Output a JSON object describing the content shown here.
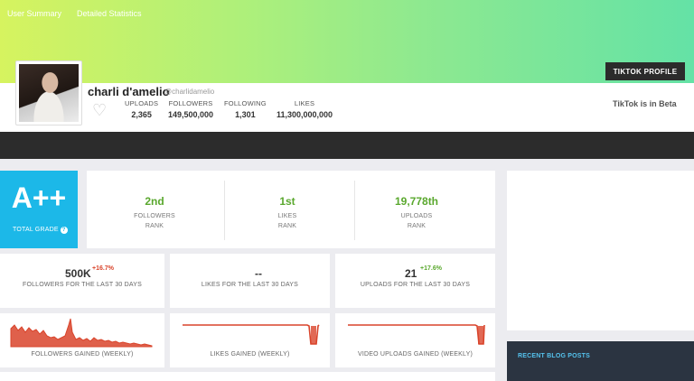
{
  "header": {
    "profile_button": "TIKTOK PROFILE",
    "name": "charli d'amelio",
    "handle": "@charlidamelio",
    "beta_note": "TikTok is in Beta",
    "stats": [
      {
        "label": "UPLOADS",
        "value": "2,365"
      },
      {
        "label": "FOLLOWERS",
        "value": "149,500,000"
      },
      {
        "label": "FOLLOWING",
        "value": "1,301"
      },
      {
        "label": "LIKES",
        "value": "11,300,000,000"
      }
    ]
  },
  "nav": {
    "items": [
      "User Summary",
      "Detailed Statistics"
    ]
  },
  "grade": {
    "value": "A++",
    "label": "TOTAL GRADE",
    "help": "?"
  },
  "ranks": [
    {
      "value": "2nd",
      "label1": "FOLLOWERS",
      "label2": "RANK"
    },
    {
      "value": "1st",
      "label1": "LIKES",
      "label2": "RANK"
    },
    {
      "value": "19,778th",
      "label1": "UPLOADS",
      "label2": "RANK"
    }
  ],
  "monthly": [
    {
      "value": "500K",
      "change": "+16.7%",
      "change_color": "#d9442b",
      "label": "FOLLOWERS FOR THE LAST 30 DAYS"
    },
    {
      "value": "--",
      "change": "",
      "change_color": "#555555",
      "label": "LIKES FOR THE LAST 30 DAYS"
    },
    {
      "value": "21",
      "change": "+17.6%",
      "change_color": "#5aa82e",
      "label": "UPLOADS FOR THE LAST 30 DAYS"
    }
  ],
  "charts": {
    "color": "#d9442b",
    "followers": {
      "label": "FOLLOWERS GAINED (WEEKLY)"
    },
    "likes": {
      "label": "LIKES GAINED (WEEKLY)"
    },
    "uploads": {
      "label": "VIDEO UPLOADS GAINED (WEEKLY)"
    }
  },
  "sidebar": {
    "blog_title": "RECENT BLOG POSTS"
  },
  "colors": {
    "accent": "#1cb8e8",
    "rank_green": "#5aa82e",
    "dark": "#2c2c2c"
  }
}
